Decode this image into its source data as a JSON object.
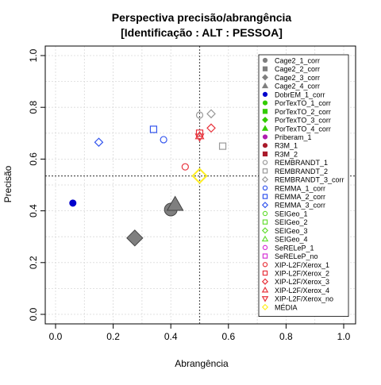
{
  "chart_data": {
    "type": "scatter",
    "title": "Perspectiva precisão/abrangência",
    "subtitle": "[Identificação : ALT : PESSOA]",
    "xlabel": "Abrangência",
    "ylabel": "Precisão",
    "xlim": [
      0,
      1
    ],
    "ylim": [
      0,
      1
    ],
    "xticks": [
      "0.0",
      "0.2",
      "0.4",
      "0.6",
      "0.8",
      "1.0"
    ],
    "yticks": [
      "0.0",
      "0.2",
      "0.4",
      "0.6",
      "0.8",
      "1.0"
    ],
    "grid": true,
    "legend_position": "right",
    "reference_lines": {
      "x": 0.5,
      "y": 0.535
    },
    "series": [
      {
        "name": "Cage2_1_corr",
        "shape": "circle",
        "filled": true,
        "color": "#7f7f7f",
        "points": [
          [
            0.4,
            0.405
          ]
        ]
      },
      {
        "name": "Cage2_2_corr",
        "shape": "square",
        "filled": true,
        "color": "#7f7f7f",
        "points": []
      },
      {
        "name": "Cage2_3_corr",
        "shape": "diamond",
        "filled": true,
        "color": "#7f7f7f",
        "points": [
          [
            0.275,
            0.295
          ]
        ]
      },
      {
        "name": "Cage2_4_corr",
        "shape": "triangle",
        "filled": true,
        "color": "#7f7f7f",
        "points": [
          [
            0.415,
            0.425
          ]
        ]
      },
      {
        "name": "DobrEM_1_corr",
        "shape": "circle",
        "filled": true,
        "color": "#0000cc",
        "points": [
          [
            0.06,
            0.43
          ]
        ]
      },
      {
        "name": "PorTexTO_1_corr",
        "shape": "circle",
        "filled": true,
        "color": "#33cc00",
        "points": []
      },
      {
        "name": "PorTexTO_2_corr",
        "shape": "square",
        "filled": true,
        "color": "#33cc00",
        "points": []
      },
      {
        "name": "PorTexTO_3_corr",
        "shape": "diamond",
        "filled": true,
        "color": "#33cc00",
        "points": []
      },
      {
        "name": "PorTexTO_4_corr",
        "shape": "triangle",
        "filled": true,
        "color": "#33cc00",
        "points": []
      },
      {
        "name": "Priberam_1",
        "shape": "circle",
        "filled": true,
        "color": "#b01cb0",
        "points": []
      },
      {
        "name": "R3M_1",
        "shape": "circle",
        "filled": true,
        "color": "#aa1a2a",
        "points": []
      },
      {
        "name": "R3M_2",
        "shape": "square",
        "filled": true,
        "color": "#aa1a2a",
        "points": []
      },
      {
        "name": "REMBRANDT_1",
        "shape": "circle",
        "filled": false,
        "color": "#999999",
        "points": [
          [
            0.5,
            0.77
          ]
        ]
      },
      {
        "name": "REMBRANDT_2",
        "shape": "square",
        "filled": false,
        "color": "#999999",
        "points": [
          [
            0.58,
            0.65
          ]
        ]
      },
      {
        "name": "REMBRANDT_3_corr",
        "shape": "diamond",
        "filled": false,
        "color": "#999999",
        "points": [
          [
            0.54,
            0.775
          ]
        ]
      },
      {
        "name": "REMMA_1_corr",
        "shape": "circle",
        "filled": false,
        "color": "#3355ee",
        "points": [
          [
            0.375,
            0.675
          ]
        ]
      },
      {
        "name": "REMMA_2_corr",
        "shape": "square",
        "filled": false,
        "color": "#3355ee",
        "points": [
          [
            0.34,
            0.715
          ]
        ]
      },
      {
        "name": "REMMA_3_corr",
        "shape": "diamond",
        "filled": false,
        "color": "#3355ee",
        "points": [
          [
            0.15,
            0.665
          ]
        ]
      },
      {
        "name": "SEIGeo_1",
        "shape": "circle",
        "filled": false,
        "color": "#66dd33",
        "points": []
      },
      {
        "name": "SEIGeo_2",
        "shape": "square",
        "filled": false,
        "color": "#66dd33",
        "points": []
      },
      {
        "name": "SEIGeo_3",
        "shape": "diamond",
        "filled": false,
        "color": "#66dd33",
        "points": []
      },
      {
        "name": "SEIGeo_4",
        "shape": "triangle",
        "filled": false,
        "color": "#66dd33",
        "points": []
      },
      {
        "name": "SeRELeP_1",
        "shape": "circle",
        "filled": false,
        "color": "#d633d6",
        "points": []
      },
      {
        "name": "SeRELeP_no",
        "shape": "square",
        "filled": false,
        "color": "#d633d6",
        "points": []
      },
      {
        "name": "XIP-L2F/Xerox_1",
        "shape": "circle",
        "filled": false,
        "color": "#e8333c",
        "points": [
          [
            0.45,
            0.57
          ]
        ]
      },
      {
        "name": "XIP-L2F/Xerox_2",
        "shape": "square",
        "filled": false,
        "color": "#e8333c",
        "points": [
          [
            0.5,
            0.7
          ]
        ]
      },
      {
        "name": "XIP-L2F/Xerox_3",
        "shape": "diamond",
        "filled": false,
        "color": "#e8333c",
        "points": [
          [
            0.54,
            0.72
          ]
        ]
      },
      {
        "name": "XIP-L2F/Xerox_4",
        "shape": "triangle",
        "filled": false,
        "color": "#e8333c",
        "points": [
          [
            0.5,
            0.69
          ]
        ]
      },
      {
        "name": "XIP-L2F/Xerox_no",
        "shape": "triangle-down",
        "filled": false,
        "color": "#e8333c",
        "points": [
          [
            0.5,
            0.685
          ]
        ]
      },
      {
        "name": "MÉDIA",
        "shape": "diamond",
        "filled": false,
        "color": "#ffee22",
        "points": [
          [
            0.5,
            0.535
          ]
        ]
      }
    ]
  }
}
